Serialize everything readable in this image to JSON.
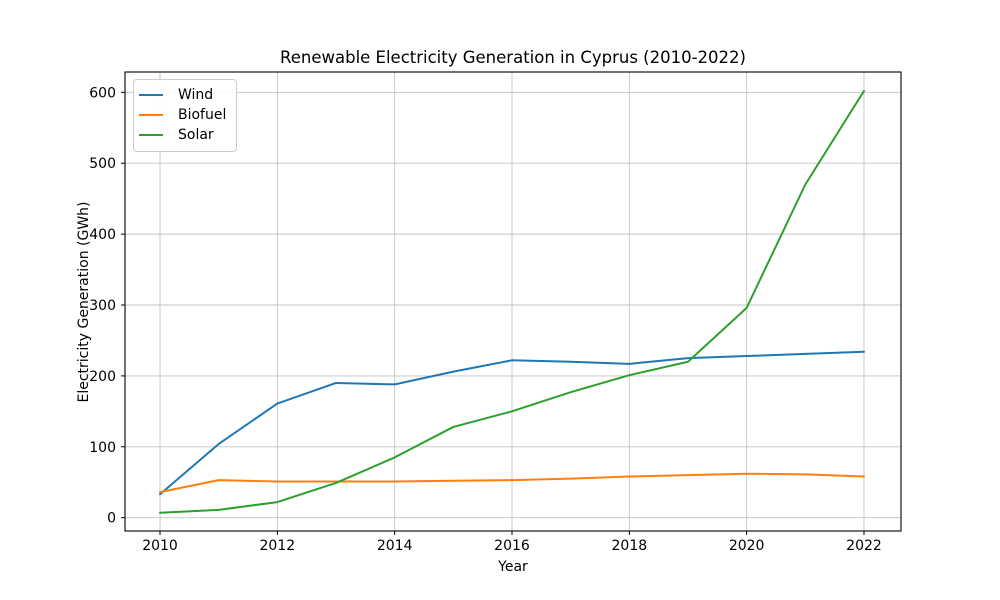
{
  "chart_data": {
    "type": "line",
    "title": "Renewable Electricity Generation in Cyprus (2010-2022)",
    "xlabel": "Year",
    "ylabel": "Electricity Generation (GWh)",
    "x": [
      2010,
      2011,
      2012,
      2013,
      2014,
      2015,
      2016,
      2017,
      2018,
      2019,
      2020,
      2021,
      2022
    ],
    "series": [
      {
        "name": "Wind",
        "color": "#1f77b4",
        "values": [
          33,
          104,
          161,
          190,
          188,
          206,
          222,
          220,
          217,
          225,
          228,
          231,
          234
        ]
      },
      {
        "name": "Biofuel",
        "color": "#ff7f0e",
        "values": [
          36,
          53,
          51,
          51,
          51,
          52,
          53,
          55,
          58,
          60,
          62,
          61,
          58
        ]
      },
      {
        "name": "Solar",
        "color": "#2ca02c",
        "values": [
          7,
          11,
          22,
          49,
          85,
          128,
          150,
          177,
          201,
          220,
          296,
          470,
          602
        ]
      }
    ],
    "xticks": [
      2010,
      2012,
      2014,
      2016,
      2018,
      2020,
      2022
    ],
    "yticks": [
      0,
      100,
      200,
      300,
      400,
      500,
      600
    ],
    "xlim": [
      2009.403,
      2022.631
    ],
    "ylim": [
      -18.8,
      628.7
    ],
    "grid": true,
    "legend_position": "upper left",
    "style": {
      "grid_color": "#c3c3c3",
      "spine_color": "#000000",
      "tick_color": "#000000",
      "text_color": "#000000",
      "background": "#ffffff",
      "line_width": 2
    }
  }
}
